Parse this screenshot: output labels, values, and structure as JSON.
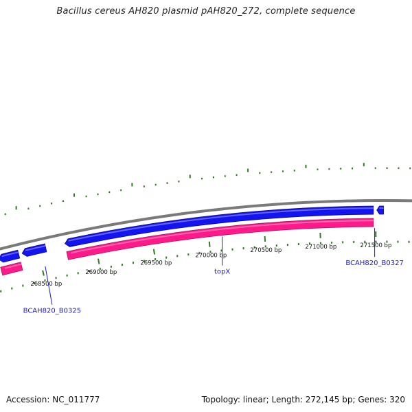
{
  "title": "Bacillus cereus AH820 plasmid pAH820_272, complete sequence",
  "footer": {
    "accession": "Accession: NC_011777",
    "summary": "Topology: linear; Length: 272,145 bp; Genes: 320"
  },
  "colors": {
    "backbone": "#7a7a7a",
    "forward_cds": "#1414f0",
    "reverse_cds": "#ff1a8c",
    "tick": "#2e7d1e",
    "gene_label": "#1a1acc",
    "text": "#111111"
  },
  "coordinate_ticks": [
    {
      "position_bp": 268500,
      "label": "268500 bp"
    },
    {
      "position_bp": 269000,
      "label": "269000 bp"
    },
    {
      "position_bp": 269500,
      "label": "269500 bp"
    },
    {
      "position_bp": 270000,
      "label": "270000 bp"
    },
    {
      "position_bp": 270500,
      "label": "270500 bp"
    },
    {
      "position_bp": 271000,
      "label": "271000 bp"
    },
    {
      "position_bp": 271500,
      "label": "271500 bp"
    }
  ],
  "features": [
    {
      "track": "forward",
      "start_bp": 268150,
      "end_bp": 268330,
      "strand": "-"
    },
    {
      "track": "forward",
      "start_bp": 268360,
      "end_bp": 268570,
      "strand": "-"
    },
    {
      "track": "forward",
      "start_bp": 268740,
      "end_bp": 271480,
      "strand": "-"
    },
    {
      "track": "forward",
      "start_bp": 271510,
      "end_bp": 271570,
      "strand": "-"
    },
    {
      "track": "reverse",
      "start_bp": 268150,
      "end_bp": 268330,
      "strand": "-"
    },
    {
      "track": "reverse",
      "start_bp": 268740,
      "end_bp": 271480,
      "strand": "-"
    }
  ],
  "gene_labels": [
    {
      "name": "BCAH820_B0325",
      "position_bp": 268530
    },
    {
      "name": "topX",
      "position_bp": 270120
    },
    {
      "name": "BCAH820_B0327",
      "position_bp": 271490
    }
  ]
}
